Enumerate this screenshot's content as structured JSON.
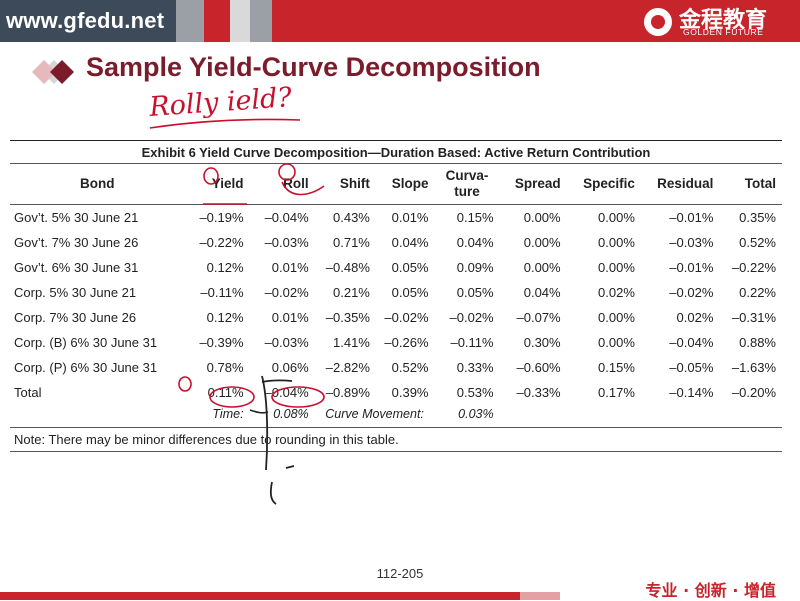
{
  "header": {
    "url": "www.gfedu.net",
    "logo_cn": "金程教育",
    "logo_en": "GOLDEN FUTURE"
  },
  "colors": {
    "brand_red": "#c7242b",
    "title_maroon": "#7b1c2c",
    "header_dark": "#3d4a5a"
  },
  "slide": {
    "title": "Sample Yield-Curve Decomposition",
    "handwritten_note": "Rolly ield?"
  },
  "exhibit": {
    "caption": "Exhibit 6 Yield Curve Decomposition—Duration Based: Active Return Contribution",
    "columns": [
      "Bond",
      "Yield",
      "Roll",
      "Shift",
      "Slope",
      "Curva-",
      "Spread",
      "Specific",
      "Residual",
      "Total"
    ],
    "column_extra": "ture",
    "rows": [
      [
        "Gov’t. 5% 30 June 21",
        "–0.19%",
        "–0.04%",
        "0.43%",
        "0.01%",
        "0.15%",
        "0.00%",
        "0.00%",
        "–0.01%",
        "0.35%"
      ],
      [
        "Gov’t. 7% 30 June 26",
        "–0.22%",
        "–0.03%",
        "0.71%",
        "0.04%",
        "0.04%",
        "0.00%",
        "0.00%",
        "–0.03%",
        "0.52%"
      ],
      [
        "Gov’t. 6% 30 June 31",
        "0.12%",
        "0.01%",
        "–0.48%",
        "0.05%",
        "0.09%",
        "0.00%",
        "0.00%",
        "–0.01%",
        "–0.22%"
      ],
      [
        "Corp. 5% 30 June 21",
        "–0.11%",
        "–0.02%",
        "0.21%",
        "0.05%",
        "0.05%",
        "0.04%",
        "0.02%",
        "–0.02%",
        "0.22%"
      ],
      [
        "Corp. 7% 30 June 26",
        "0.12%",
        "0.01%",
        "–0.35%",
        "–0.02%",
        "–0.02%",
        "–0.07%",
        "0.00%",
        "0.02%",
        "–0.31%"
      ],
      [
        "Corp. (B) 6% 30 June 31",
        "–0.39%",
        "–0.03%",
        "1.41%",
        "–0.26%",
        "–0.11%",
        "0.30%",
        "0.00%",
        "–0.04%",
        "0.88%"
      ],
      [
        "Corp. (P) 6% 30 June 31",
        "0.78%",
        "0.06%",
        "–2.82%",
        "0.52%",
        "0.33%",
        "–0.60%",
        "0.15%",
        "–0.05%",
        "–1.63%"
      ],
      [
        "Total",
        "0.11%",
        "–0.04%",
        "–0.89%",
        "0.39%",
        "0.53%",
        "–0.33%",
        "0.17%",
        "–0.14%",
        "–0.20%"
      ]
    ],
    "time_label": "Time:",
    "time_value": "0.08%",
    "curve_label": "Curve Movement:",
    "curve_value": "0.03%",
    "note": "Note: There may be minor differences due to rounding in this table."
  },
  "footer": {
    "page": "112-205",
    "slogan": "专业 · 创新 · 增值"
  }
}
